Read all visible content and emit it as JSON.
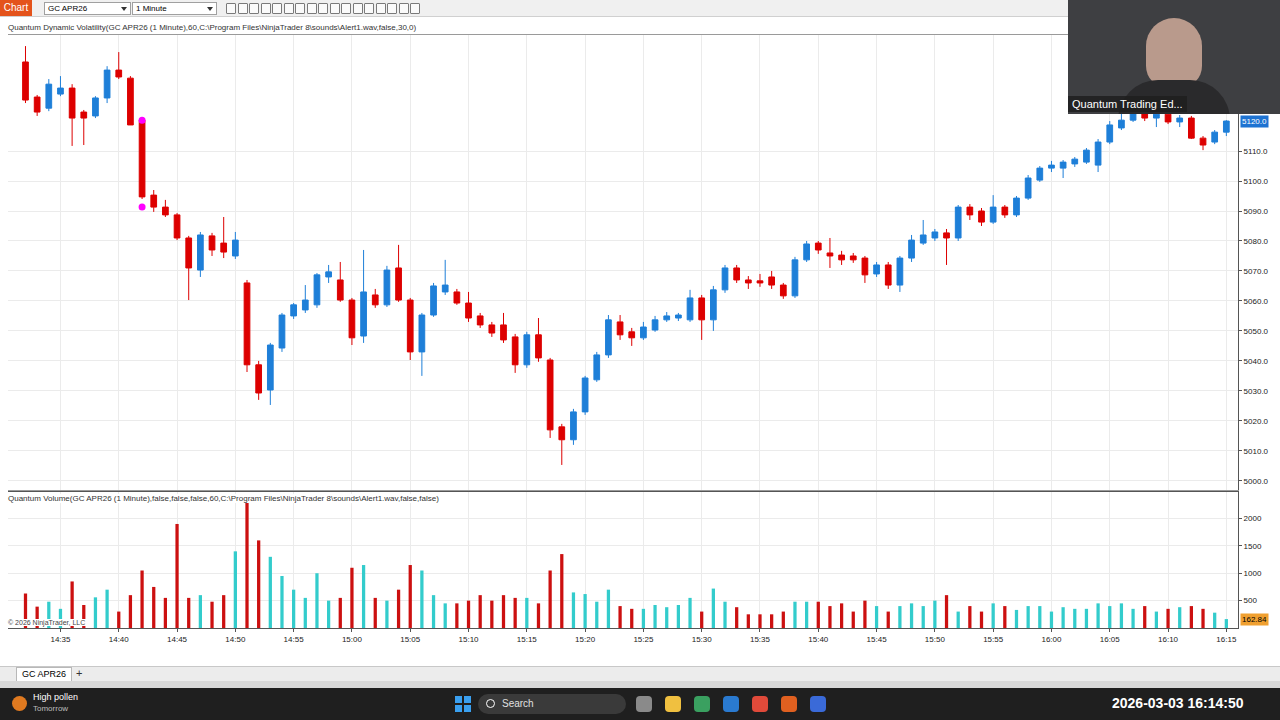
{
  "window": {
    "toolbar": {
      "tab": "Chart",
      "instrument": "GC APR26",
      "interval": "1 Minute"
    },
    "webcam_caption": "Quantum Trading Ed...",
    "copyright": "© 2026 NinjaTrader, LLC",
    "chart_tab": "GC APR26",
    "new_tab": "+",
    "taskbar": {
      "weather": "High pollen",
      "weather_sub": "Tomorrow",
      "search": "Search",
      "clock": "2026-03-03  16:14:50"
    }
  },
  "chart_data": [
    {
      "type": "candlestick",
      "title": "Quantum Dynamic Volatility(GC APR26 (1 Minute),60,C:\\Program Files\\NinjaTrader 8\\sounds\\Alert1.wav,false,30,0)",
      "categories": [
        null,
        null,
        null,
        "14:35",
        null,
        null,
        null,
        null,
        "14:40",
        null,
        null,
        null,
        null,
        "14:45",
        null,
        null,
        null,
        null,
        "14:50",
        null,
        null,
        null,
        null,
        "14:55",
        null,
        null,
        null,
        null,
        "15:00",
        null,
        null,
        null,
        null,
        "15:05",
        null,
        null,
        null,
        null,
        "15:10",
        null,
        null,
        null,
        null,
        "15:15",
        null,
        null,
        null,
        null,
        "15:20",
        null,
        null,
        null,
        null,
        "15:25",
        null,
        null,
        null,
        null,
        "15:30",
        null,
        null,
        null,
        null,
        "15:35",
        null,
        null,
        null,
        null,
        "15:40",
        null,
        null,
        null,
        null,
        "15:45",
        null,
        null,
        null,
        null,
        "15:50",
        null,
        null,
        null,
        null,
        "15:55",
        null,
        null,
        null,
        null,
        "16:00",
        null,
        null,
        null,
        null,
        "16:05",
        null,
        null,
        null,
        null,
        "16:10",
        null,
        null,
        null,
        null,
        "16:15"
      ],
      "open": [
        5139.7,
        5128.0,
        5124.3,
        5129.0,
        5131.0,
        5123.0,
        5121.7,
        5127.7,
        5137.0,
        5134.3,
        5120.3,
        5095.3,
        5091.3,
        5088.7,
        5081.0,
        5070.3,
        5081.7,
        5079.3,
        5075.0,
        5066.0,
        5038.7,
        5030.3,
        5044.3,
        5055.0,
        5057.0,
        5058.7,
        5068.0,
        5067.0,
        5060.3,
        5048.3,
        5062.0,
        5058.7,
        5071.0,
        5060.3,
        5043.0,
        5055.3,
        5063.0,
        5063.0,
        5059.3,
        5055.0,
        5052.0,
        5052.0,
        5048.0,
        5038.7,
        5048.7,
        5040.3,
        5018.0,
        5013.7,
        5023.0,
        5033.7,
        5042.0,
        5053.0,
        5049.7,
        5047.7,
        5050.3,
        5053.7,
        5054.3,
        5053.7,
        5061.0,
        5053.7,
        5063.7,
        5071.0,
        5067.0,
        5066.7,
        5068.0,
        5065.3,
        5061.7,
        5073.7,
        5079.3,
        5076.0,
        5075.3,
        5075.0,
        5074.3,
        5069.0,
        5072.0,
        5065.3,
        5074.3,
        5079.3,
        5081.0,
        5082.7,
        5081.0,
        5091.3,
        5090.0,
        5086.3,
        5091.3,
        5088.7,
        5094.3,
        5100.3,
        5104.3,
        5104.3,
        5105.7,
        5106.3,
        5105.3,
        5113.0,
        5117.7,
        5120.3,
        5124.0,
        5121.0,
        5122.3,
        5119.7,
        5121.0,
        5114.3,
        5113.0,
        5116.3
      ],
      "high": [
        5145.0,
        5128.7,
        5134.0,
        5135.0,
        5132.3,
        5123.7,
        5128.3,
        5138.3,
        5143.0,
        5135.0,
        5121.0,
        5097.0,
        5093.7,
        5089.3,
        5081.7,
        5083.0,
        5082.7,
        5088.0,
        5083.0,
        5067.0,
        5040.0,
        5046.0,
        5056.0,
        5059.3,
        5065.3,
        5069.3,
        5072.0,
        5073.0,
        5061.0,
        5077.0,
        5064.0,
        5071.7,
        5078.7,
        5061.0,
        5056.0,
        5066.0,
        5073.7,
        5064.0,
        5063.0,
        5056.0,
        5053.0,
        5056.0,
        5049.0,
        5049.7,
        5054.3,
        5041.0,
        5019.0,
        5024.0,
        5035.0,
        5043.0,
        5055.3,
        5055.3,
        5051.0,
        5053.0,
        5055.0,
        5056.3,
        5056.0,
        5063.7,
        5062.0,
        5065.0,
        5072.0,
        5072.0,
        5068.3,
        5069.0,
        5070.0,
        5066.0,
        5074.7,
        5080.0,
        5080.0,
        5081.0,
        5076.7,
        5076.0,
        5075.0,
        5073.0,
        5073.0,
        5075.0,
        5082.0,
        5087.0,
        5084.0,
        5084.0,
        5092.0,
        5092.3,
        5091.0,
        5095.3,
        5092.0,
        5095.0,
        5102.0,
        5105.0,
        5106.7,
        5107.0,
        5108.0,
        5111.0,
        5114.0,
        5120.0,
        5123.0,
        5125.0,
        5125.0,
        5123.0,
        5124.0,
        5122.0,
        5121.7,
        5115.0,
        5117.0,
        5120.3
      ],
      "low": [
        5126.0,
        5121.7,
        5123.3,
        5128.3,
        5111.7,
        5112.0,
        5121.0,
        5126.0,
        5134.0,
        5118.7,
        5094.0,
        5089.7,
        5088.0,
        5080.3,
        5060.3,
        5068.0,
        5075.0,
        5074.3,
        5074.0,
        5036.3,
        5027.0,
        5025.3,
        5043.0,
        5054.0,
        5056.0,
        5057.7,
        5066.0,
        5059.7,
        5045.3,
        5046.0,
        5057.7,
        5058.0,
        5059.7,
        5040.3,
        5035.0,
        5054.7,
        5062.0,
        5058.7,
        5053.0,
        5051.0,
        5048.0,
        5046.0,
        5036.0,
        5037.7,
        5039.7,
        5014.3,
        5005.3,
        5012.0,
        5022.0,
        5033.0,
        5041.0,
        5047.0,
        5045.0,
        5047.0,
        5049.7,
        5053.0,
        5053.3,
        5053.0,
        5047.0,
        5050.0,
        5062.7,
        5066.0,
        5064.0,
        5064.7,
        5064.0,
        5060.7,
        5061.0,
        5073.0,
        5075.7,
        5071.0,
        5072.0,
        5072.7,
        5066.0,
        5068.0,
        5064.0,
        5063.0,
        5073.0,
        5078.7,
        5080.0,
        5072.0,
        5080.0,
        5087.0,
        5085.0,
        5085.7,
        5087.7,
        5088.0,
        5093.7,
        5099.7,
        5103.0,
        5101.0,
        5104.7,
        5105.7,
        5103.0,
        5112.3,
        5117.0,
        5119.7,
        5120.0,
        5118.0,
        5119.0,
        5118.0,
        5114.0,
        5110.3,
        5112.3,
        5115.0
      ],
      "close": [
        5127.0,
        5123.0,
        5132.3,
        5131.0,
        5121.0,
        5121.0,
        5127.7,
        5137.0,
        5134.7,
        5118.7,
        5094.7,
        5091.3,
        5088.7,
        5081.0,
        5071.0,
        5082.0,
        5077.0,
        5076.3,
        5080.3,
        5038.7,
        5029.3,
        5045.3,
        5055.3,
        5058.7,
        5060.3,
        5068.7,
        5069.7,
        5060.3,
        5047.7,
        5063.0,
        5058.7,
        5070.3,
        5060.3,
        5043.0,
        5055.3,
        5065.0,
        5065.3,
        5059.3,
        5054.3,
        5052.0,
        5049.3,
        5047.0,
        5038.7,
        5048.7,
        5041.0,
        5017.0,
        5013.7,
        5023.0,
        5034.3,
        5042.0,
        5053.7,
        5048.7,
        5047.7,
        5051.3,
        5053.7,
        5055.0,
        5055.3,
        5061.0,
        5053.7,
        5063.7,
        5071.0,
        5067.0,
        5066.0,
        5066.0,
        5065.3,
        5061.7,
        5073.7,
        5079.0,
        5077.0,
        5075.0,
        5073.7,
        5073.7,
        5068.7,
        5072.0,
        5065.3,
        5074.3,
        5080.3,
        5082.0,
        5083.0,
        5081.0,
        5091.3,
        5088.7,
        5086.3,
        5091.3,
        5088.7,
        5094.3,
        5101.0,
        5104.3,
        5105.3,
        5106.3,
        5107.3,
        5110.3,
        5113.0,
        5118.7,
        5120.3,
        5124.0,
        5121.0,
        5122.3,
        5119.7,
        5121.0,
        5114.3,
        5112.0,
        5116.3,
        5120.0
      ],
      "color": {
        "up": "#1e7fd8",
        "down": "#dd0000"
      },
      "signals": {
        "positions": [
          10,
          10
        ],
        "values": [
          5120.3,
          5091.3
        ],
        "color": "#ff00ff",
        "marker": "circle"
      },
      "last_label": {
        "value": 5120.0,
        "label": "5120.0"
      },
      "xlim": [
        -1.5,
        104
      ],
      "ylim": [
        4997,
        5148.7
      ],
      "yticks": [
        {
          "value": 5000,
          "label": "5000.0"
        },
        {
          "value": 5010,
          "label": "5010.0"
        },
        {
          "value": 5020,
          "label": "5020.0"
        },
        {
          "value": 5030,
          "label": "5030.0"
        },
        {
          "value": 5040,
          "label": "5040.0"
        },
        {
          "value": 5050,
          "label": "5050.0"
        },
        {
          "value": 5060,
          "label": "5060.0"
        },
        {
          "value": 5070,
          "label": "5070.0"
        },
        {
          "value": 5080,
          "label": "5080.0"
        },
        {
          "value": 5090,
          "label": "5090.0"
        },
        {
          "value": 5100,
          "label": "5100.0"
        },
        {
          "value": 5110,
          "label": "5110.0"
        }
      ],
      "grid": true,
      "tick_labels": "y"
    },
    {
      "type": "bar",
      "title": "Quantum Volume(GC APR26 (1 Minute),false,false,false,60,C:\\Program Files\\NinjaTrader 8\\sounds\\Alert1.wav,false,false)",
      "categories": [
        null,
        null,
        null,
        "14:35",
        null,
        null,
        null,
        null,
        "14:40",
        null,
        null,
        null,
        null,
        "14:45",
        null,
        null,
        null,
        null,
        "14:50",
        null,
        null,
        null,
        null,
        "14:55",
        null,
        null,
        null,
        null,
        "15:00",
        null,
        null,
        null,
        null,
        "15:05",
        null,
        null,
        null,
        null,
        "15:10",
        null,
        null,
        null,
        null,
        "15:15",
        null,
        null,
        null,
        null,
        "15:20",
        null,
        null,
        null,
        null,
        "15:25",
        null,
        null,
        null,
        null,
        "15:30",
        null,
        null,
        null,
        null,
        "15:35",
        null,
        null,
        null,
        null,
        "15:40",
        null,
        null,
        null,
        null,
        "15:45",
        null,
        null,
        null,
        null,
        "15:50",
        null,
        null,
        null,
        null,
        "15:55",
        null,
        null,
        null,
        null,
        "16:00",
        null,
        null,
        null,
        null,
        "16:05",
        null,
        null,
        null,
        null,
        "16:10",
        null,
        null,
        null,
        null,
        "16:15"
      ],
      "values": [
        630,
        390,
        480,
        350,
        850,
        420,
        560,
        700,
        300,
        600,
        1050,
        750,
        550,
        1900,
        550,
        600,
        480,
        600,
        1400,
        2400,
        1600,
        1300,
        950,
        700,
        550,
        1000,
        500,
        550,
        1100,
        1150,
        550,
        500,
        700,
        1150,
        1050,
        600,
        450,
        450,
        500,
        600,
        500,
        600,
        550,
        550,
        450,
        1050,
        1350,
        650,
        620,
        480,
        700,
        400,
        350,
        350,
        420,
        380,
        420,
        550,
        300,
        720,
        480,
        380,
        250,
        250,
        250,
        300,
        480,
        480,
        480,
        400,
        450,
        300,
        500,
        400,
        300,
        400,
        450,
        400,
        500,
        600,
        300,
        400,
        300,
        450,
        400,
        330,
        400,
        400,
        300,
        380,
        350,
        350,
        450,
        400,
        450,
        350,
        400,
        300,
        350,
        380,
        400,
        350,
        280,
        162.84
      ],
      "colors": [
        "#cc1010",
        "#cc1010",
        "#33cccc",
        "#33cccc",
        "#cc1010",
        "#cc1010",
        "#33cccc",
        "#33cccc",
        "#cc1010",
        "#cc1010",
        "#cc1010",
        "#cc1010",
        "#cc1010",
        "#cc1010",
        "#cc1010",
        "#33cccc",
        "#cc1010",
        "#cc1010",
        "#33cccc",
        "#cc1010",
        "#cc1010",
        "#33cccc",
        "#33cccc",
        "#33cccc",
        "#33cccc",
        "#33cccc",
        "#33cccc",
        "#cc1010",
        "#cc1010",
        "#33cccc",
        "#cc1010",
        "#33cccc",
        "#cc1010",
        "#cc1010",
        "#33cccc",
        "#33cccc",
        "#33cccc",
        "#cc1010",
        "#cc1010",
        "#cc1010",
        "#cc1010",
        "#cc1010",
        "#cc1010",
        "#33cccc",
        "#cc1010",
        "#cc1010",
        "#cc1010",
        "#33cccc",
        "#33cccc",
        "#33cccc",
        "#33cccc",
        "#cc1010",
        "#cc1010",
        "#33cccc",
        "#33cccc",
        "#33cccc",
        "#33cccc",
        "#33cccc",
        "#cc1010",
        "#33cccc",
        "#33cccc",
        "#cc1010",
        "#cc1010",
        "#cc1010",
        "#cc1010",
        "#cc1010",
        "#33cccc",
        "#33cccc",
        "#cc1010",
        "#cc1010",
        "#cc1010",
        "#cc1010",
        "#cc1010",
        "#33cccc",
        "#cc1010",
        "#33cccc",
        "#33cccc",
        "#33cccc",
        "#33cccc",
        "#cc1010",
        "#33cccc",
        "#cc1010",
        "#cc1010",
        "#33cccc",
        "#cc1010",
        "#33cccc",
        "#33cccc",
        "#33cccc",
        "#33cccc",
        "#33cccc",
        "#33cccc",
        "#33cccc",
        "#33cccc",
        "#33cccc",
        "#33cccc",
        "#33cccc",
        "#cc1010",
        "#33cccc",
        "#cc1010",
        "#33cccc",
        "#cc1010",
        "#cc1010",
        "#33cccc",
        "#33cccc"
      ],
      "last_label": {
        "value": 162.84,
        "label": "162.84"
      },
      "xlim": [
        -1.5,
        104
      ],
      "ylim": [
        0,
        2480
      ],
      "yticks": [
        500,
        1000,
        1500,
        2000
      ],
      "grid": true
    }
  ]
}
